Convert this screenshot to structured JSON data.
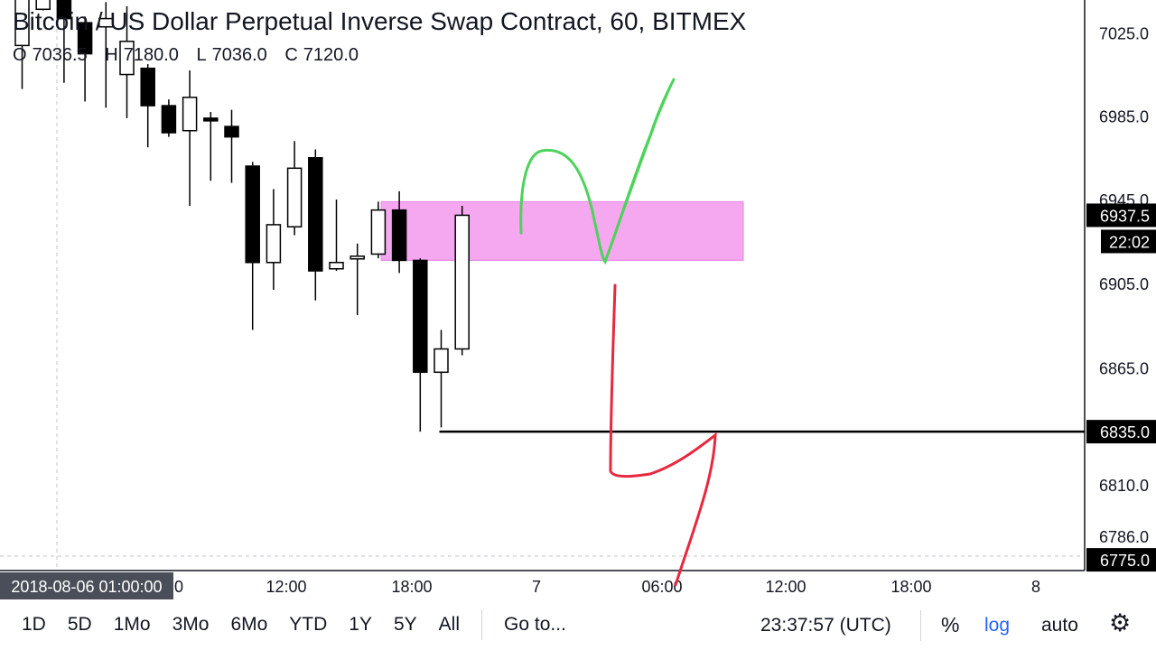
{
  "header": {
    "title": "Bitcoin / US Dollar Perpetual Inverse Swap Contract, 60, BITMEX",
    "ohlc": [
      {
        "key": "O",
        "value": "7036.5"
      },
      {
        "key": "H",
        "value": "7180.0"
      },
      {
        "key": "L",
        "value": "7036.0"
      },
      {
        "key": "C",
        "value": "7120.0"
      }
    ]
  },
  "toolbar": {
    "timeframes": [
      "1D",
      "5D",
      "1Mo",
      "3Mo",
      "6Mo",
      "YTD",
      "1Y",
      "5Y",
      "All"
    ],
    "goto_label": "Go to...",
    "clock": "23:37:57 (UTC)",
    "percent_label": "%",
    "log_label": "log",
    "auto_label": "auto",
    "settings_icon": "gear-icon"
  },
  "colors": {
    "bearish_body": "#000000",
    "bullish_body": "#ffffff",
    "zone_fill": "#f5a3f0",
    "check_mark": "#4cd35a",
    "arrow_mark": "#e8283e",
    "axis_label_bg": "#000000"
  },
  "chart_data": {
    "type": "candlestick",
    "y_axis": {
      "ticks": [
        "7025.0",
        "6985.0",
        "6945.0",
        "6905.0",
        "6865.0",
        "6810.0",
        "6786.0"
      ],
      "tick_values": [
        7025,
        6985,
        6945,
        6905,
        6865,
        6810,
        6786
      ],
      "ylim": [
        6770,
        7041
      ],
      "scale": "log"
    },
    "x_axis": {
      "ticks": [
        "12:00",
        "18:00",
        "7",
        "06:00",
        "12:00",
        "18:00",
        "8"
      ],
      "crosshair_label": "2018-08-06 01:00:00",
      "crosshair_suffix": "0"
    },
    "price_labels": {
      "last": "6937.5",
      "countdown": "22:02",
      "level": "6835.0",
      "bottom": "6775.0"
    },
    "candles": [
      {
        "o": 7019,
        "h": 7055,
        "l": 6998,
        "c": 7043
      },
      {
        "o": 7036.5,
        "h": 7180.0,
        "l": 7036.0,
        "c": 7120.0
      },
      {
        "o": 7046,
        "h": 7051,
        "l": 7001,
        "c": 7032
      },
      {
        "o": 7030,
        "h": 7033,
        "l": 6992,
        "c": 7015
      },
      {
        "o": 7028,
        "h": 7040,
        "l": 6989,
        "c": 7032
      },
      {
        "o": 7005,
        "h": 7038,
        "l": 6984,
        "c": 7021
      },
      {
        "o": 7008,
        "h": 7010,
        "l": 6970,
        "c": 6990
      },
      {
        "o": 6990,
        "h": 6993,
        "l": 6975,
        "c": 6977
      },
      {
        "o": 6978,
        "h": 7007,
        "l": 6942,
        "c": 6994
      },
      {
        "o": 6984,
        "h": 6987,
        "l": 6954,
        "c": 6983
      },
      {
        "o": 6980,
        "h": 6988,
        "l": 6953,
        "c": 6975
      },
      {
        "o": 6961,
        "h": 6963,
        "l": 6883,
        "c": 6915
      },
      {
        "o": 6915,
        "h": 6950,
        "l": 6902,
        "c": 6933
      },
      {
        "o": 6932,
        "h": 6973,
        "l": 6928,
        "c": 6960
      },
      {
        "o": 6965,
        "h": 6969,
        "l": 6897,
        "c": 6911
      },
      {
        "o": 6912,
        "h": 6945,
        "l": 6911,
        "c": 6915
      },
      {
        "o": 6918,
        "h": 6924,
        "l": 6890,
        "c": 6918
      },
      {
        "o": 6919,
        "h": 6944,
        "l": 6917,
        "c": 6940
      },
      {
        "o": 6940,
        "h": 6949,
        "l": 6910,
        "c": 6916
      },
      {
        "o": 6916,
        "h": 6917,
        "l": 6835,
        "c": 6863
      },
      {
        "o": 6863,
        "h": 6883,
        "l": 6837,
        "c": 6874
      },
      {
        "o": 6874,
        "h": 6942,
        "l": 6871,
        "c": 6937.5
      }
    ],
    "zone": {
      "top": 6944,
      "bottom": 6916,
      "start_candle": 18
    },
    "hline": {
      "value": 6835.0,
      "start_candle": 20
    },
    "grid": false
  }
}
